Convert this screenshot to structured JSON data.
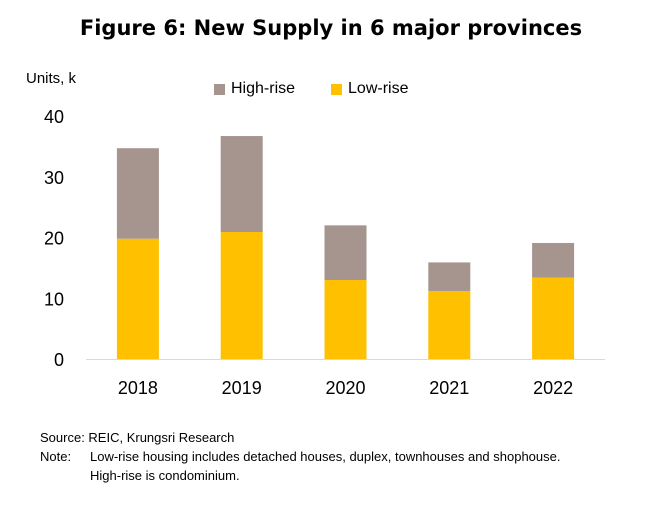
{
  "header": {
    "title": "Figure 6: New Supply in 6 major provinces"
  },
  "chart_data": {
    "type": "bar",
    "stacked": true,
    "title": "Figure 6: New Supply in 6 major provinces",
    "ylabel": "Units, k",
    "xlabel": "",
    "categories": [
      "2018",
      "2019",
      "2020",
      "2021",
      "2022"
    ],
    "series": [
      {
        "name": "Low-rise",
        "values": [
          19.8,
          20.9,
          13.0,
          11.2,
          13.4
        ],
        "color": "#FFC000"
      },
      {
        "name": "High-rise",
        "values": [
          14.9,
          15.8,
          9.0,
          4.7,
          5.7
        ],
        "color": "#A6948F"
      }
    ],
    "ylim": [
      0,
      40
    ],
    "yticks": [
      "0",
      "10",
      "20",
      "30",
      "40"
    ],
    "legend_order": [
      "High-rise",
      "Low-rise"
    ],
    "legend_position": "top",
    "grid": false
  },
  "footer": {
    "source": "Source: REIC, Krungsri Research",
    "note_label": "Note:",
    "note_line1": "Low-rise housing  includes detached houses, duplex, townhouses and shophouse.",
    "note_line2": "High-rise is condominium."
  }
}
